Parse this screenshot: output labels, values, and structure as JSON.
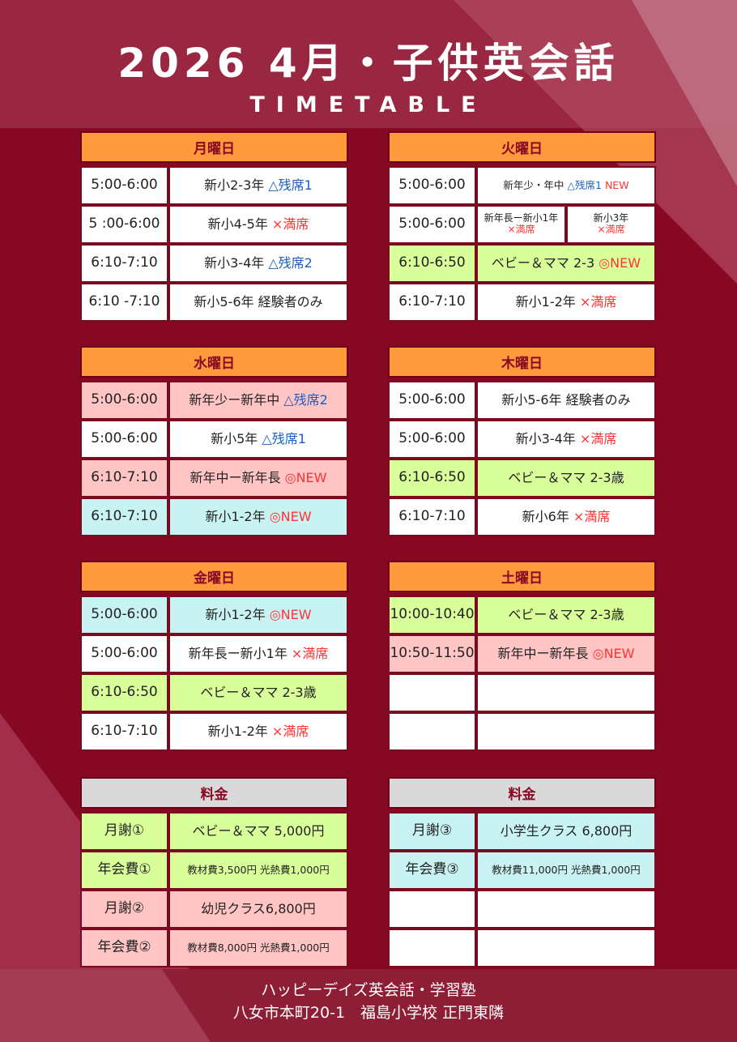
{
  "header": {
    "title": "2026 4月・子供英会話",
    "subtitle": "TIMETABLE"
  },
  "colors": {
    "background": "#870823",
    "day_header": "#ff9a3c",
    "fee_header": "#d9d9d9",
    "pink": "#ffc4c4",
    "green": "#d9ff9a",
    "cyan": "#c9f3f3",
    "white": "#ffffff",
    "blue_text": "#1a5fc4",
    "red_text": "#ff3333"
  },
  "blocks": [
    {
      "title": "月曜日",
      "header": "orange",
      "rows": [
        {
          "time": "5:00-6:00",
          "bg": "white",
          "content": [
            {
              "t": "新小2-3年 "
            },
            {
              "t": "△残席1",
              "c": "blue"
            }
          ]
        },
        {
          "time": "5 :00-6:00",
          "bg": "white",
          "content": [
            {
              "t": "新小4-5年 "
            },
            {
              "t": "×満席",
              "c": "red"
            }
          ]
        },
        {
          "time": "6:10-7:10",
          "bg": "white",
          "content": [
            {
              "t": "新小3-4年 "
            },
            {
              "t": "△残席2",
              "c": "blue"
            }
          ]
        },
        {
          "time": "6:10 -7:10",
          "bg": "white",
          "content": [
            {
              "t": "新小5-6年 経験者のみ"
            }
          ]
        }
      ]
    },
    {
      "title": "火曜日",
      "header": "orange",
      "rows": [
        {
          "time": "5:00-6:00",
          "bg": "white",
          "small": true,
          "content": [
            {
              "t": "新年少・年中 "
            },
            {
              "t": "△残席1 ",
              "c": "blue"
            },
            {
              "t": "NEW",
              "c": "red"
            }
          ]
        },
        {
          "time": "5:00-6:00",
          "bg": "white",
          "split": [
            [
              {
                "t": "新年長ー新小1年"
              },
              {
                "t": "×満席",
                "c": "red"
              }
            ],
            [
              {
                "t": "新小3年"
              },
              {
                "t": "×満席",
                "c": "red"
              }
            ]
          ]
        },
        {
          "time": "6:10-6:50",
          "bg": "green",
          "content": [
            {
              "t": "ベビー＆ママ 2-3 "
            },
            {
              "t": "◎NEW",
              "c": "red"
            }
          ]
        },
        {
          "time": "6:10-7:10",
          "bg": "white",
          "content": [
            {
              "t": "新小1-2年 "
            },
            {
              "t": "×満席",
              "c": "red"
            }
          ]
        }
      ]
    },
    {
      "title": "水曜日",
      "header": "orange",
      "rows": [
        {
          "time": "5:00-6:00",
          "bg": "pink",
          "content": [
            {
              "t": "新年少ー新年中 "
            },
            {
              "t": "△残席2",
              "c": "blue"
            }
          ]
        },
        {
          "time": "5:00-6:00",
          "bg": "white",
          "content": [
            {
              "t": "新小5年 "
            },
            {
              "t": "△残席1",
              "c": "blue"
            }
          ]
        },
        {
          "time": "6:10-7:10",
          "bg": "pink",
          "content": [
            {
              "t": "新年中ー新年長 "
            },
            {
              "t": "◎NEW",
              "c": "red"
            }
          ]
        },
        {
          "time": "6:10-7:10",
          "bg": "cyan",
          "content": [
            {
              "t": "新小1-2年 "
            },
            {
              "t": "◎NEW",
              "c": "red"
            }
          ]
        }
      ]
    },
    {
      "title": "木曜日",
      "header": "orange",
      "rows": [
        {
          "time": "5:00-6:00",
          "bg": "white",
          "content": [
            {
              "t": "新小5-6年 経験者のみ"
            }
          ]
        },
        {
          "time": "5:00-6:00",
          "bg": "white",
          "content": [
            {
              "t": "新小3-4年 "
            },
            {
              "t": "×満席",
              "c": "red"
            }
          ]
        },
        {
          "time": "6:10-6:50",
          "bg": "green",
          "content": [
            {
              "t": "ベビー＆ママ 2-3歳"
            }
          ]
        },
        {
          "time": "6:10-7:10",
          "bg": "white",
          "content": [
            {
              "t": "新小6年 "
            },
            {
              "t": "×満席",
              "c": "red"
            }
          ]
        }
      ]
    },
    {
      "title": "金曜日",
      "header": "orange",
      "rows": [
        {
          "time": "5:00-6:00",
          "bg": "cyan",
          "content": [
            {
              "t": "新小1-2年 "
            },
            {
              "t": "◎NEW",
              "c": "red"
            }
          ]
        },
        {
          "time": "5:00-6:00",
          "bg": "white",
          "content": [
            {
              "t": "新年長ー新小1年 "
            },
            {
              "t": "×満席",
              "c": "red"
            }
          ]
        },
        {
          "time": "6:10-6:50",
          "bg": "green",
          "content": [
            {
              "t": "ベビー＆ママ 2-3歳"
            }
          ]
        },
        {
          "time": "6:10-7:10",
          "bg": "white",
          "content": [
            {
              "t": "新小1-2年 "
            },
            {
              "t": "×満席",
              "c": "red"
            }
          ]
        }
      ]
    },
    {
      "title": "土曜日",
      "header": "orange",
      "rows": [
        {
          "time": "10:00-10:40",
          "bg": "green",
          "content": [
            {
              "t": "ベビー＆ママ 2-3歳"
            }
          ]
        },
        {
          "time": "10:50-11:50",
          "bg": "pink",
          "content": [
            {
              "t": "新年中ー新年長 "
            },
            {
              "t": "◎NEW",
              "c": "red"
            }
          ]
        },
        {
          "time": "",
          "bg": "white",
          "content": []
        },
        {
          "time": "",
          "bg": "white",
          "content": []
        }
      ]
    },
    {
      "title": "料金",
      "header": "gray",
      "rows": [
        {
          "time": "月謝①",
          "bg": "green",
          "content": [
            {
              "t": "ベビー＆ママ 5,000円"
            }
          ]
        },
        {
          "time": "年会費①",
          "bg": "green",
          "small": true,
          "content": [
            {
              "t": "教材費3,500円 光熱費1,000円"
            }
          ]
        },
        {
          "time": "月謝②",
          "bg": "pink",
          "content": [
            {
              "t": "幼児クラス6,800円"
            }
          ]
        },
        {
          "time": "年会費②",
          "bg": "pink",
          "small": true,
          "content": [
            {
              "t": "教材費8,000円 光熱費1,000円"
            }
          ]
        }
      ]
    },
    {
      "title": "料金",
      "header": "gray",
      "rows": [
        {
          "time": "月謝③",
          "bg": "cyan",
          "content": [
            {
              "t": "小学生クラス 6,800円"
            }
          ]
        },
        {
          "time": "年会費③",
          "bg": "cyan",
          "small": true,
          "content": [
            {
              "t": "教材費11,000円 光熱費1,000円"
            }
          ]
        },
        {
          "time": "",
          "bg": "white",
          "content": []
        },
        {
          "time": "",
          "bg": "white",
          "content": []
        }
      ]
    }
  ],
  "footer": {
    "line1": "ハッピーデイズ英会話・学習塾",
    "line2": "八女市本町20-1　福島小学校 正門東隣"
  }
}
